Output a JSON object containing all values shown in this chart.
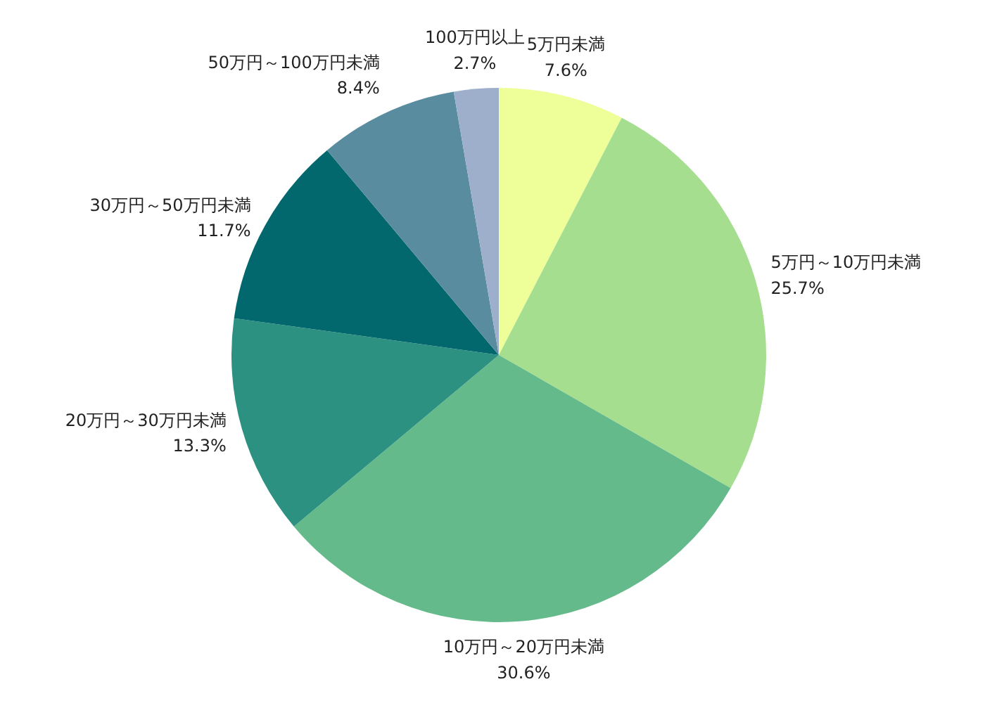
{
  "chart_data": {
    "type": "pie",
    "categories": [
      "5万円未満",
      "5万円～10万円未満",
      "10万円～20万円未満",
      "20万円～30万円未満",
      "30万円～50万円未満",
      "50万円～100万円未満",
      "100万円以上"
    ],
    "values": [
      7.6,
      25.7,
      30.6,
      13.3,
      11.7,
      8.4,
      2.7
    ],
    "value_labels": [
      "7.6%",
      "25.7%",
      "30.6%",
      "13.3%",
      "11.7%",
      "8.4%",
      "2.7%"
    ],
    "colors": [
      "#eeff99",
      "#a6de90",
      "#64ba8a",
      "#2d9182",
      "#03686e",
      "#5a8ca0",
      "#9dafca"
    ]
  }
}
